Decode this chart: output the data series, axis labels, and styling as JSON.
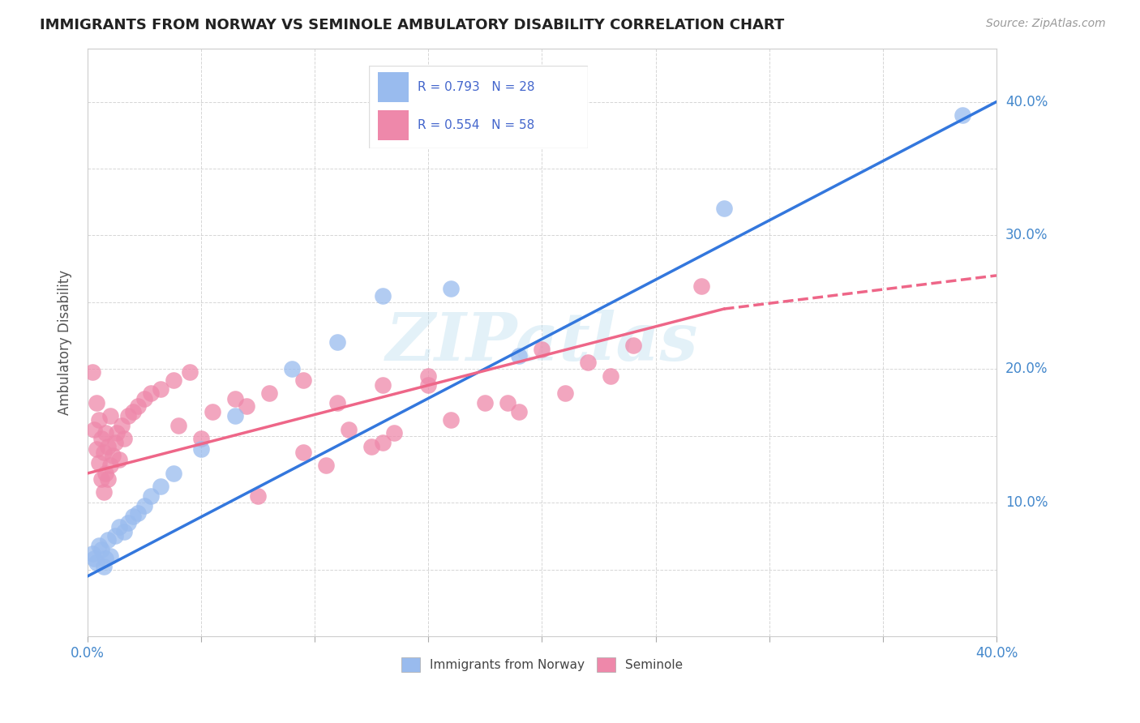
{
  "title": "IMMIGRANTS FROM NORWAY VS SEMINOLE AMBULATORY DISABILITY CORRELATION CHART",
  "source": "Source: ZipAtlas.com",
  "ylabel": "Ambulatory Disability",
  "xlim": [
    0.0,
    0.4
  ],
  "ylim": [
    0.0,
    0.44
  ],
  "norway_color": "#99bbee",
  "seminole_color": "#ee88aa",
  "norway_line_color": "#3377dd",
  "seminole_line_color": "#ee6688",
  "watermark_text": "ZIPatlas",
  "legend_text_color": "#4466cc",
  "norway_scatter_x": [
    0.002,
    0.003,
    0.004,
    0.005,
    0.006,
    0.007,
    0.008,
    0.009,
    0.01,
    0.012,
    0.014,
    0.016,
    0.018,
    0.02,
    0.022,
    0.025,
    0.028,
    0.032,
    0.038,
    0.05,
    0.065,
    0.09,
    0.11,
    0.13,
    0.16,
    0.19,
    0.28,
    0.385
  ],
  "norway_scatter_y": [
    0.062,
    0.058,
    0.055,
    0.068,
    0.065,
    0.052,
    0.058,
    0.072,
    0.06,
    0.075,
    0.082,
    0.078,
    0.085,
    0.09,
    0.092,
    0.098,
    0.105,
    0.112,
    0.122,
    0.14,
    0.165,
    0.2,
    0.22,
    0.255,
    0.26,
    0.21,
    0.32,
    0.39
  ],
  "seminole_scatter_x": [
    0.002,
    0.003,
    0.004,
    0.004,
    0.005,
    0.005,
    0.006,
    0.006,
    0.007,
    0.007,
    0.008,
    0.008,
    0.009,
    0.009,
    0.01,
    0.01,
    0.011,
    0.012,
    0.013,
    0.014,
    0.015,
    0.016,
    0.018,
    0.02,
    0.022,
    0.025,
    0.028,
    0.032,
    0.038,
    0.045,
    0.055,
    0.065,
    0.08,
    0.095,
    0.11,
    0.13,
    0.15,
    0.16,
    0.175,
    0.19,
    0.07,
    0.04,
    0.05,
    0.2,
    0.22,
    0.115,
    0.13,
    0.23,
    0.095,
    0.105,
    0.27,
    0.15,
    0.185,
    0.24,
    0.125,
    0.21,
    0.135,
    0.075
  ],
  "seminole_scatter_y": [
    0.198,
    0.155,
    0.14,
    0.175,
    0.13,
    0.162,
    0.118,
    0.148,
    0.108,
    0.138,
    0.122,
    0.152,
    0.118,
    0.142,
    0.128,
    0.165,
    0.135,
    0.145,
    0.152,
    0.132,
    0.158,
    0.148,
    0.165,
    0.168,
    0.172,
    0.178,
    0.182,
    0.185,
    0.192,
    0.198,
    0.168,
    0.178,
    0.182,
    0.192,
    0.175,
    0.188,
    0.195,
    0.162,
    0.175,
    0.168,
    0.172,
    0.158,
    0.148,
    0.215,
    0.205,
    0.155,
    0.145,
    0.195,
    0.138,
    0.128,
    0.262,
    0.188,
    0.175,
    0.218,
    0.142,
    0.182,
    0.152,
    0.105
  ]
}
